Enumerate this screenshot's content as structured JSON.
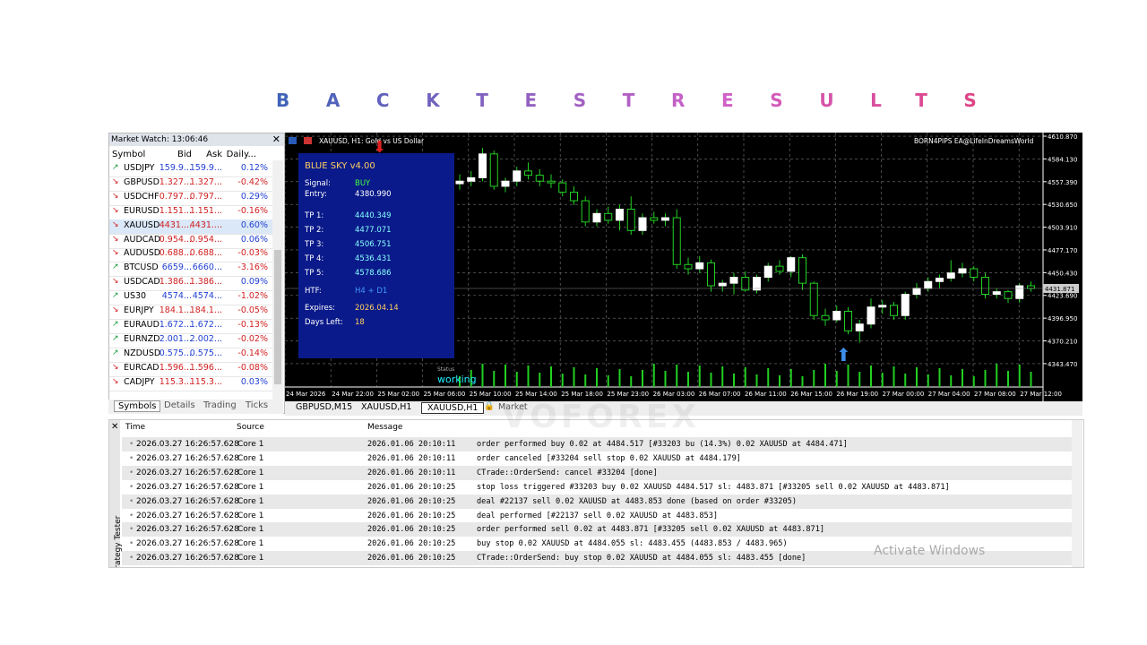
{
  "header": {
    "title": "BACKTESTRESULTS"
  },
  "market_watch": {
    "title": "Market Watch: 13:06:46",
    "columns": [
      "Symbol",
      "Bid",
      "Ask",
      "Daily..."
    ],
    "rows": [
      {
        "symbol": "USDJPY",
        "dir": "up",
        "bid": "159.9...",
        "ask": "159.9...",
        "daily": "0.12%"
      },
      {
        "symbol": "GBPUSD",
        "dir": "down",
        "bid": "1.327...",
        "ask": "1.327...",
        "daily": "-0.42%"
      },
      {
        "symbol": "USDCHF",
        "dir": "down",
        "bid": "0.797...",
        "ask": "0.797...",
        "daily": "0.29%"
      },
      {
        "symbol": "EURUSD",
        "dir": "down",
        "bid": "1.151...",
        "ask": "1.151...",
        "daily": "-0.16%"
      },
      {
        "symbol": "XAUUSD",
        "dir": "down",
        "bid": "4431....",
        "ask": "4431....",
        "daily": "0.60%"
      },
      {
        "symbol": "AUDCAD",
        "dir": "down",
        "bid": "0.954...",
        "ask": "0.954...",
        "daily": "0.06%"
      },
      {
        "symbol": "AUDUSD",
        "dir": "down",
        "bid": "0.688...",
        "ask": "0.688...",
        "daily": "-0.03%"
      },
      {
        "symbol": "BTCUSD",
        "dir": "up",
        "bid": "6659...",
        "ask": "6660...",
        "daily": "-3.16%"
      },
      {
        "symbol": "USDCAD",
        "dir": "down",
        "bid": "1.386...",
        "ask": "1.386...",
        "daily": "0.09%"
      },
      {
        "symbol": "US30",
        "dir": "up",
        "bid": "4574...",
        "ask": "4574...",
        "daily": "-1.02%"
      },
      {
        "symbol": "EURJPY",
        "dir": "down",
        "bid": "184.1...",
        "ask": "184.1...",
        "daily": "-0.05%"
      },
      {
        "symbol": "EURAUD",
        "dir": "up",
        "bid": "1.672...",
        "ask": "1.672...",
        "daily": "-0.13%"
      },
      {
        "symbol": "EURNZD",
        "dir": "up",
        "bid": "2.001...",
        "ask": "2.002...",
        "daily": "-0.02%"
      },
      {
        "symbol": "NZDUSD",
        "dir": "up",
        "bid": "0.575...",
        "ask": "0.575...",
        "daily": "-0.14%"
      },
      {
        "symbol": "EURCAD",
        "dir": "down",
        "bid": "1.596...",
        "ask": "1.596...",
        "daily": "-0.08%"
      },
      {
        "symbol": "CADJPY",
        "dir": "down",
        "bid": "115.3...",
        "ask": "115.3...",
        "daily": "0.03%"
      }
    ],
    "tabs": [
      "Symbols",
      "Details",
      "Trading",
      "Ticks"
    ]
  },
  "chart": {
    "symbol_label": "XAUUSD, H1: Gold vs US Dollar",
    "ea_label": "BORN4PIPS EA@LifeInDreamsWorld",
    "status_label": "Status",
    "status": "working",
    "ylim": [
      4316,
      4613
    ],
    "yticks": [
      {
        "value": 4610.87,
        "label": "4610.870"
      },
      {
        "value": 4584.13,
        "label": "4584.130"
      },
      {
        "value": 4557.39,
        "label": "4557.390"
      },
      {
        "value": 4530.65,
        "label": "4530.650"
      },
      {
        "value": 4503.91,
        "label": "4503.910"
      },
      {
        "value": 4477.17,
        "label": "4477.170"
      },
      {
        "value": 4450.43,
        "label": "4450.430"
      },
      {
        "value": 4423.69,
        "label": "4423.690"
      },
      {
        "value": 4396.95,
        "label": "4396.950"
      },
      {
        "value": 4370.21,
        "label": "4370.210"
      },
      {
        "value": 4343.47,
        "label": "4343.470"
      }
    ],
    "current_price": 4431.871,
    "x_labels": [
      "24 Mar 2026",
      "24 Mar 22:00",
      "25 Mar 02:00",
      "25 Mar 06:00",
      "25 Mar 10:00",
      "25 Mar 14:00",
      "25 Mar 18:00",
      "25 Mar 23:00",
      "26 Mar 03:00",
      "26 Mar 07:00",
      "26 Mar 11:00",
      "26 Mar 15:00",
      "26 Mar 19:00",
      "27 Mar 00:00",
      "27 Mar 04:00",
      "27 Mar 08:00",
      "27 Mar 12:00"
    ],
    "candles": [
      [
        4555,
        4566,
        4548,
        4558
      ],
      [
        4558,
        4570,
        4552,
        4562
      ],
      [
        4562,
        4597,
        4558,
        4590
      ],
      [
        4590,
        4594,
        4548,
        4552
      ],
      [
        4552,
        4562,
        4545,
        4558
      ],
      [
        4558,
        4575,
        4552,
        4570
      ],
      [
        4570,
        4580,
        4560,
        4565
      ],
      [
        4565,
        4572,
        4552,
        4558
      ],
      [
        4558,
        4566,
        4550,
        4556
      ],
      [
        4556,
        4560,
        4540,
        4545
      ],
      [
        4545,
        4552,
        4530,
        4535
      ],
      [
        4535,
        4540,
        4505,
        4510
      ],
      [
        4510,
        4525,
        4505,
        4520
      ],
      [
        4520,
        4528,
        4508,
        4512
      ],
      [
        4512,
        4530,
        4500,
        4525
      ],
      [
        4525,
        4540,
        4495,
        4500
      ],
      [
        4500,
        4520,
        4495,
        4515
      ],
      [
        4515,
        4522,
        4508,
        4512
      ],
      [
        4512,
        4520,
        4505,
        4515
      ],
      [
        4515,
        4525,
        4455,
        4460
      ],
      [
        4460,
        4468,
        4448,
        4455
      ],
      [
        4455,
        4470,
        4450,
        4462
      ],
      [
        4462,
        4466,
        4428,
        4435
      ],
      [
        4435,
        4442,
        4428,
        4438
      ],
      [
        4438,
        4450,
        4425,
        4445
      ],
      [
        4445,
        4452,
        4428,
        4430
      ],
      [
        4430,
        4448,
        4426,
        4445
      ],
      [
        4445,
        4462,
        4440,
        4458
      ],
      [
        4458,
        4465,
        4448,
        4452
      ],
      [
        4452,
        4470,
        4445,
        4468
      ],
      [
        4468,
        4472,
        4430,
        4438
      ],
      [
        4438,
        4440,
        4395,
        4400
      ],
      [
        4400,
        4408,
        4388,
        4395
      ],
      [
        4395,
        4412,
        4392,
        4405
      ],
      [
        4405,
        4410,
        4378,
        4382
      ],
      [
        4382,
        4395,
        4368,
        4390
      ],
      [
        4390,
        4420,
        4385,
        4410
      ],
      [
        4410,
        4418,
        4402,
        4412
      ],
      [
        4412,
        4416,
        4395,
        4400
      ],
      [
        4400,
        4428,
        4395,
        4425
      ],
      [
        4425,
        4438,
        4420,
        4432
      ],
      [
        4432,
        4445,
        4428,
        4440
      ],
      [
        4440,
        4448,
        4432,
        4444
      ],
      [
        4444,
        4465,
        4440,
        4450
      ],
      [
        4450,
        4462,
        4445,
        4455
      ],
      [
        4455,
        4458,
        4440,
        4445
      ],
      [
        4445,
        4450,
        4420,
        4425
      ],
      [
        4425,
        4432,
        4420,
        4428
      ],
      [
        4428,
        4430,
        4415,
        4420
      ],
      [
        4420,
        4438,
        4415,
        4435
      ],
      [
        4435,
        4440,
        4428,
        4431.871
      ]
    ],
    "panel": {
      "title": "BLUE SKY v4.00",
      "rows": [
        [
          "Signal:",
          "BUY"
        ],
        [
          "Entry:",
          "4380.990"
        ],
        [
          "TP 1:",
          "4440.349"
        ],
        [
          "TP 2:",
          "4477.071"
        ],
        [
          "TP 3:",
          "4506.751"
        ],
        [
          "TP 4:",
          "4536.431"
        ],
        [
          "TP 5:",
          "4578.686"
        ],
        [
          "HTF:",
          "H4 + D1"
        ],
        [
          "Expires:",
          "2026.04.14"
        ],
        [
          "Days Left:",
          "18"
        ]
      ]
    }
  },
  "chart_tabs": [
    "GBPUSD,M15",
    "XAUUSD,H1",
    "XAUUSD,H1",
    "Market"
  ],
  "log": {
    "columns": [
      "Time",
      "Source",
      "Message"
    ],
    "side_label": "Strategy Tester",
    "rows": [
      [
        "2026.03.27 16:26:57.628",
        "Core 1",
        "2026.01.06 20:10:11",
        "order performed buy 0.02 at 4484.517 [#33203 bu (14.3%) 0.02 XAUUSD at 4484.471]"
      ],
      [
        "2026.03.27 16:26:57.628",
        "Core 1",
        "2026.01.06 20:10:11",
        "order canceled [#33204 sell stop 0.02 XAUUSD at 4484.179]"
      ],
      [
        "2026.03.27 16:26:57.628",
        "Core 1",
        "2026.01.06 20:10:11",
        "CTrade::OrderSend: cancel #33204 [done]"
      ],
      [
        "2026.03.27 16:26:57.628",
        "Core 1",
        "2026.01.06 20:10:25",
        "stop loss triggered #33203 buy 0.02 XAUUSD 4484.517 sl: 4483.871 [#33205 sell 0.02 XAUUSD at 4483.871]"
      ],
      [
        "2026.03.27 16:26:57.628",
        "Core 1",
        "2026.01.06 20:10:25",
        "deal #22137 sell 0.02 XAUUSD at 4483.853 done (based on order #33205)"
      ],
      [
        "2026.03.27 16:26:57.628",
        "Core 1",
        "2026.01.06 20:10:25",
        "deal performed [#22137 sell 0.02 XAUUSD at 4483.853]"
      ],
      [
        "2026.03.27 16:26:57.628",
        "Core 1",
        "2026.01.06 20:10:25",
        "order performed sell 0.02 at 4483.871 [#33205 sell 0.02 XAUUSD at 4483.871]"
      ],
      [
        "2026.03.27 16:26:57.628",
        "Core 1",
        "2026.01.06 20:10:25",
        "buy stop 0.02 XAUUSD at 4484.055 sl: 4483.455 (4483.853 / 4483.965)"
      ],
      [
        "2026.03.27 16:26:57.628",
        "Core 1",
        "2026.01.06 20:10:25",
        "CTrade::OrderSend: buy stop 0.02 XAUUSD at 4484.055 sl: 4483.455 [done]"
      ]
    ]
  },
  "watermark": "VOFOREX",
  "os_notice": "Activate Windows"
}
